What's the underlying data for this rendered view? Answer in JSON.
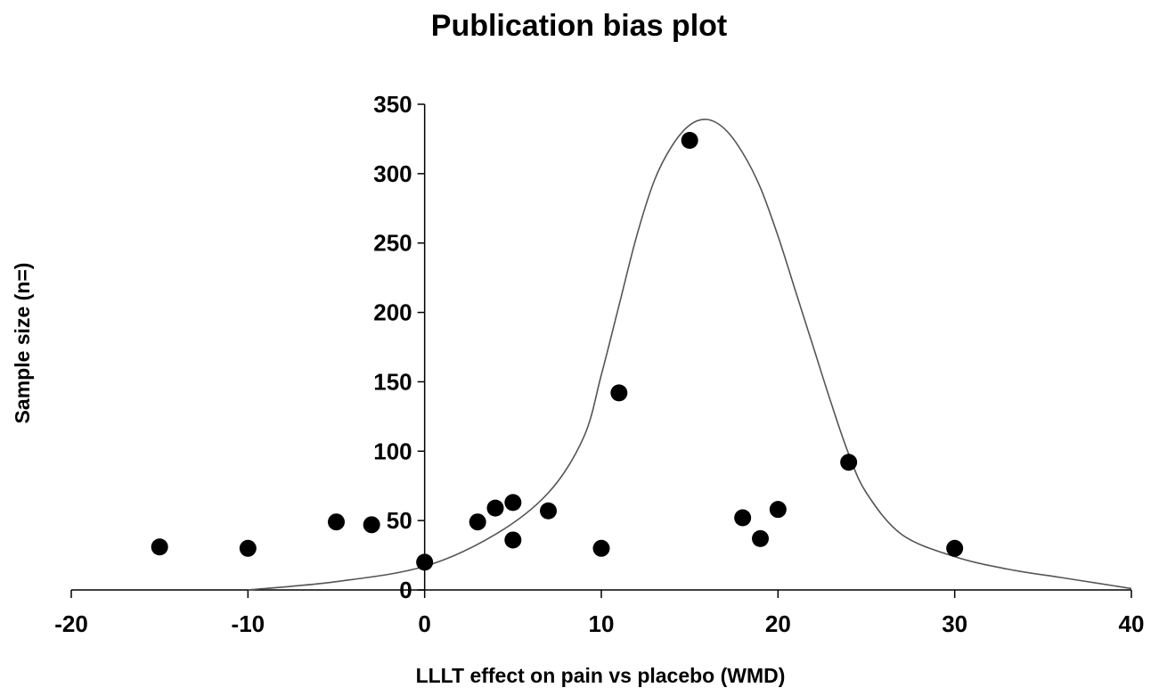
{
  "chart_data": {
    "type": "scatter",
    "title": "Publication bias plot",
    "xlabel": "LLLT effect on pain vs placebo (WMD)",
    "ylabel": "Sample size (n=)",
    "xlim": [
      -20,
      40
    ],
    "ylim": [
      0,
      350
    ],
    "x_ticks": [
      -20,
      -10,
      0,
      10,
      20,
      30,
      40
    ],
    "y_ticks": [
      0,
      50,
      100,
      150,
      200,
      250,
      300,
      350
    ],
    "x_tick_labels": [
      "-20",
      "-10",
      "0",
      "10",
      "20",
      "30",
      "40"
    ],
    "y_tick_labels": [
      "0",
      "50",
      "100",
      "150",
      "200",
      "250",
      "300",
      "350"
    ],
    "grid": false,
    "legend": "none",
    "series": [
      {
        "type": "scatter",
        "marker": "filled-circle",
        "color": "#000000",
        "points": [
          {
            "x": -15,
            "y": 31
          },
          {
            "x": -10,
            "y": 30
          },
          {
            "x": -5,
            "y": 49
          },
          {
            "x": -3,
            "y": 47
          },
          {
            "x": 0,
            "y": 20
          },
          {
            "x": 3,
            "y": 49
          },
          {
            "x": 4,
            "y": 59
          },
          {
            "x": 5,
            "y": 63
          },
          {
            "x": 5,
            "y": 36
          },
          {
            "x": 7,
            "y": 57
          },
          {
            "x": 10,
            "y": 30
          },
          {
            "x": 11,
            "y": 142
          },
          {
            "x": 15,
            "y": 324
          },
          {
            "x": 18,
            "y": 52
          },
          {
            "x": 19,
            "y": 37
          },
          {
            "x": 20,
            "y": 58
          },
          {
            "x": 24,
            "y": 92
          },
          {
            "x": 30,
            "y": 30
          }
        ]
      },
      {
        "type": "line",
        "style": "smooth",
        "color": "#555555",
        "points": [
          {
            "x": -10,
            "y": 0
          },
          {
            "x": -5,
            "y": 6
          },
          {
            "x": 0,
            "y": 17
          },
          {
            "x": 4,
            "y": 40
          },
          {
            "x": 7,
            "y": 70
          },
          {
            "x": 9,
            "y": 110
          },
          {
            "x": 10,
            "y": 155
          },
          {
            "x": 11,
            "y": 205
          },
          {
            "x": 12,
            "y": 255
          },
          {
            "x": 13,
            "y": 295
          },
          {
            "x": 14,
            "y": 320
          },
          {
            "x": 15,
            "y": 335
          },
          {
            "x": 16,
            "y": 339
          },
          {
            "x": 17,
            "y": 332
          },
          {
            "x": 18,
            "y": 315
          },
          {
            "x": 19,
            "y": 290
          },
          {
            "x": 20,
            "y": 255
          },
          {
            "x": 21,
            "y": 215
          },
          {
            "x": 22,
            "y": 175
          },
          {
            "x": 23,
            "y": 135
          },
          {
            "x": 24,
            "y": 98
          },
          {
            "x": 25,
            "y": 70
          },
          {
            "x": 27,
            "y": 40
          },
          {
            "x": 30,
            "y": 24
          },
          {
            "x": 33,
            "y": 15
          },
          {
            "x": 36,
            "y": 9
          },
          {
            "x": 38,
            "y": 5
          },
          {
            "x": 40,
            "y": 1
          }
        ]
      }
    ]
  }
}
